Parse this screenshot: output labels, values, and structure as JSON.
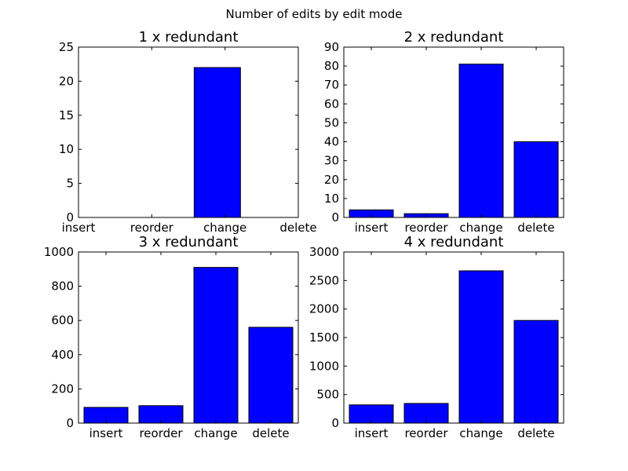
{
  "figure": {
    "suptitle": "Number of edits by edit mode"
  },
  "chart_data": [
    {
      "type": "bar",
      "title": "1 x redundant",
      "categories": [
        "insert",
        "reorder",
        "change",
        "delete"
      ],
      "values": [
        0,
        0,
        22,
        0
      ],
      "yticks": [
        0,
        5,
        10,
        15,
        20,
        25
      ],
      "ylim": [
        0,
        25
      ],
      "bar_color": "#0000ff",
      "tick_style": "edge",
      "xlabel": "",
      "ylabel": ""
    },
    {
      "type": "bar",
      "title": "2 x redundant",
      "categories": [
        "insert",
        "reorder",
        "change",
        "delete"
      ],
      "values": [
        4,
        2,
        81,
        40
      ],
      "yticks": [
        0,
        10,
        20,
        30,
        40,
        50,
        60,
        70,
        80,
        90
      ],
      "ylim": [
        0,
        90
      ],
      "bar_color": "#0000ff",
      "tick_style": "center",
      "xlabel": "",
      "ylabel": ""
    },
    {
      "type": "bar",
      "title": "3 x redundant",
      "categories": [
        "insert",
        "reorder",
        "change",
        "delete"
      ],
      "values": [
        92,
        102,
        910,
        560
      ],
      "yticks": [
        0,
        200,
        400,
        600,
        800,
        1000
      ],
      "ylim": [
        0,
        1000
      ],
      "bar_color": "#0000ff",
      "tick_style": "center",
      "xlabel": "",
      "ylabel": ""
    },
    {
      "type": "bar",
      "title": "4 x redundant",
      "categories": [
        "insert",
        "reorder",
        "change",
        "delete"
      ],
      "values": [
        320,
        345,
        2670,
        1800
      ],
      "yticks": [
        0,
        500,
        1000,
        1500,
        2000,
        2500,
        3000
      ],
      "ylim": [
        0,
        3000
      ],
      "bar_color": "#0000ff",
      "tick_style": "center",
      "xlabel": "",
      "ylabel": ""
    }
  ]
}
